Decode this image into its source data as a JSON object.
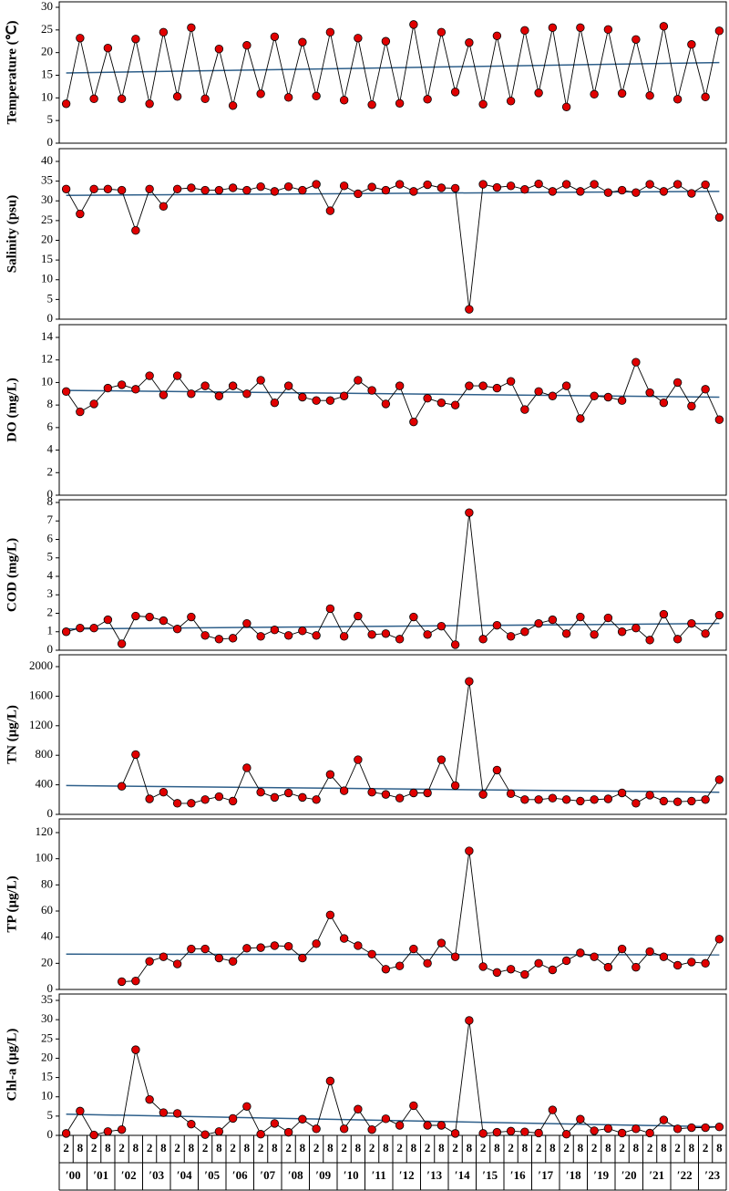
{
  "chart_data": [
    {
      "type": "line",
      "y_label": "Temperature (℃)",
      "ylim": [
        0,
        30
      ],
      "yticks": [
        0,
        5,
        10,
        15,
        20,
        25,
        30
      ],
      "color": "#e00000",
      "trend_color": "#2e5f8a",
      "values": [
        8.7,
        23.2,
        9.8,
        21.0,
        9.8,
        23.0,
        8.7,
        24.5,
        10.3,
        25.5,
        9.8,
        20.8,
        8.3,
        21.6,
        10.9,
        23.5,
        10.1,
        22.3,
        10.4,
        24.5,
        9.5,
        23.2,
        8.5,
        22.5,
        8.8,
        26.2,
        9.7,
        24.5,
        11.3,
        22.2,
        8.6,
        23.7,
        9.3,
        24.9,
        11.1,
        25.5,
        8.0,
        25.5,
        10.8,
        25.1,
        11.0,
        22.9,
        10.5,
        25.8,
        9.7,
        21.8,
        10.2,
        24.8
      ],
      "trend": [
        15.5,
        17.8
      ]
    },
    {
      "type": "line",
      "y_label": "Salinity (psu)",
      "ylim": [
        0,
        40
      ],
      "yticks": [
        0,
        5,
        10,
        15,
        20,
        25,
        30,
        35,
        40
      ],
      "color": "#e00000",
      "trend_color": "#2e5f8a",
      "values": [
        33,
        26.7,
        33,
        33,
        32.7,
        22.5,
        33,
        28.6,
        33,
        33.3,
        32.7,
        32.7,
        33.3,
        32.7,
        33.6,
        32.4,
        33.6,
        32.7,
        34.2,
        27.5,
        33.8,
        31.8,
        33.5,
        32.7,
        34.2,
        32.4,
        34.1,
        33.3,
        33.2,
        2.5,
        34.2,
        33.4,
        33.8,
        32.9,
        34.3,
        32.4,
        34.2,
        32.4,
        34.2,
        32.1,
        32.7,
        32.1,
        34.2,
        32.4,
        34.2,
        31.9,
        34.1,
        25.8
      ],
      "trend": [
        31.4,
        32.4
      ]
    },
    {
      "type": "line",
      "y_label": "DO (mg/L)",
      "ylim": [
        0,
        14
      ],
      "yticks": [
        0,
        2,
        4,
        6,
        8,
        10,
        12,
        14
      ],
      "color": "#e00000",
      "trend_color": "#2e5f8a",
      "values": [
        9.2,
        7.4,
        8.1,
        9.5,
        9.8,
        9.4,
        10.6,
        8.9,
        10.6,
        9.0,
        9.7,
        8.8,
        9.7,
        9.0,
        10.2,
        8.2,
        9.7,
        8.7,
        8.4,
        8.4,
        8.8,
        10.2,
        9.3,
        8.1,
        9.7,
        6.5,
        8.6,
        8.2,
        8.0,
        9.7,
        9.7,
        9.5,
        10.1,
        7.6,
        9.2,
        8.8,
        9.7,
        6.8,
        8.8,
        8.7,
        8.4,
        11.8,
        9.1,
        8.2,
        10.0,
        7.9,
        9.4,
        6.7
      ],
      "trend": [
        9.3,
        8.7
      ]
    },
    {
      "type": "line",
      "y_label": "COD (mg/L)",
      "ylim": [
        0,
        8
      ],
      "yticks": [
        0,
        1,
        2,
        3,
        4,
        5,
        6,
        7,
        8
      ],
      "color": "#e00000",
      "trend_color": "#2e5f8a",
      "values": [
        1.0,
        1.2,
        1.2,
        1.65,
        0.35,
        1.85,
        1.8,
        1.6,
        1.15,
        1.8,
        0.8,
        0.6,
        0.65,
        1.45,
        0.75,
        1.1,
        0.8,
        1.05,
        0.8,
        2.25,
        0.75,
        1.85,
        0.85,
        0.9,
        0.6,
        1.8,
        0.85,
        1.3,
        0.3,
        7.45,
        0.6,
        1.35,
        0.75,
        1.0,
        1.45,
        1.65,
        0.9,
        1.8,
        0.85,
        1.75,
        1.0,
        1.2,
        0.55,
        1.95,
        0.6,
        1.45,
        0.9,
        1.9
      ],
      "trend": [
        1.15,
        1.45
      ]
    },
    {
      "type": "line",
      "y_label": "TN (μg/L)",
      "ylim": [
        0,
        2000
      ],
      "yticks": [
        0,
        400,
        800,
        1200,
        1600,
        2000
      ],
      "color": "#e00000",
      "trend_color": "#2e5f8a",
      "values": [
        null,
        null,
        null,
        null,
        380,
        810,
        210,
        300,
        150,
        150,
        200,
        240,
        180,
        630,
        300,
        230,
        290,
        230,
        200,
        540,
        320,
        740,
        300,
        270,
        220,
        290,
        290,
        740,
        390,
        1800,
        270,
        600,
        280,
        200,
        200,
        220,
        200,
        180,
        200,
        210,
        290,
        150,
        260,
        180,
        170,
        180,
        200,
        470
      ],
      "trend": [
        390,
        300
      ]
    },
    {
      "type": "line",
      "y_label": "TP (μg/L)",
      "ylim": [
        0,
        120
      ],
      "yticks": [
        0,
        20,
        40,
        60,
        80,
        100,
        120
      ],
      "color": "#e00000",
      "trend_color": "#2e5f8a",
      "values": [
        null,
        null,
        null,
        null,
        6,
        6.5,
        21.5,
        25,
        19.5,
        31,
        31,
        24,
        21.5,
        31.5,
        32,
        33.5,
        33,
        24,
        35,
        57,
        39,
        33.5,
        27,
        15.5,
        18,
        31,
        20,
        35.5,
        25,
        106,
        17.5,
        13,
        15.5,
        11.5,
        20,
        15,
        22,
        28,
        25,
        17,
        31,
        17,
        29,
        25,
        18.5,
        21,
        20,
        38.5
      ],
      "trend": [
        27,
        26.5
      ]
    },
    {
      "type": "line",
      "y_label": "Chl-a (μg/L)",
      "ylim": [
        0,
        35
      ],
      "yticks": [
        0,
        5,
        10,
        15,
        20,
        25,
        30,
        35
      ],
      "color": "#e00000",
      "trend_color": "#2e5f8a",
      "values": [
        0.5,
        6.3,
        0.1,
        1.0,
        1.5,
        22.2,
        9.3,
        5.9,
        5.7,
        2.9,
        0.2,
        1.0,
        4.4,
        7.5,
        0.3,
        3.1,
        0.8,
        4.2,
        1.7,
        14.1,
        1.7,
        6.8,
        1.5,
        4.3,
        2.6,
        7.7,
        2.6,
        2.6,
        0.5,
        29.8,
        0.5,
        0.8,
        1.1,
        0.9,
        0.6,
        6.6,
        0.3,
        4.2,
        1.2,
        1.8,
        0.6,
        1.7,
        0.6,
        4.0,
        1.7,
        2.0,
        2.0,
        2.2
      ],
      "trend": [
        5.5,
        2.2
      ],
      "categories": [
        "2",
        "8",
        "2",
        "8",
        "2",
        "8",
        "2",
        "8",
        "2",
        "8",
        "2",
        "8",
        "2",
        "8",
        "2",
        "8",
        "2",
        "8",
        "2",
        "8",
        "2",
        "8",
        "2",
        "8",
        "2",
        "8",
        "2",
        "8",
        "2",
        "8",
        "2",
        "8",
        "2",
        "8",
        "2",
        "8",
        "2",
        "8",
        "2",
        "8",
        "2",
        "8",
        "2",
        "8",
        "2",
        "8",
        "2",
        "8"
      ],
      "year_labels": [
        "′00",
        "′01",
        "′02",
        "′03",
        "′04",
        "′05",
        "′06",
        "′07",
        "′08",
        "′09",
        "′10",
        "′11",
        "′12",
        "′13",
        "′14",
        "′15",
        "′16",
        "′17",
        "′18",
        "′19",
        "′20",
        "′21",
        "′22",
        "′23"
      ]
    }
  ]
}
